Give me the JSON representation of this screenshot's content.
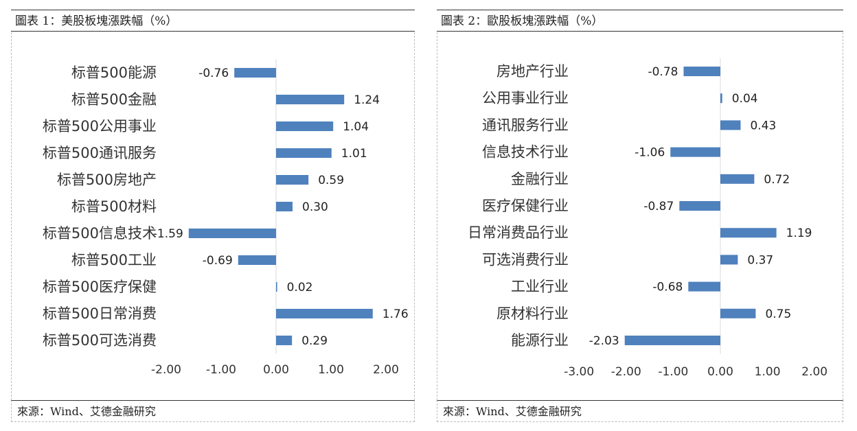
{
  "panels": [
    {
      "title": "圖表 1：美股板塊漲跌幅（%）",
      "source": "來源：Wind、艾德金融研究",
      "chart_data": {
        "type": "bar",
        "orientation": "horizontal",
        "categories": [
          "标普500能源",
          "标普500金融",
          "标普500公用事业",
          "标普500通讯服务",
          "标普500房地产",
          "标普500材料",
          "标普500信息技术",
          "标普500工业",
          "标普500医疗保健",
          "标普500日常消费",
          "标普500可选消费"
        ],
        "values": [
          -0.76,
          1.24,
          1.04,
          1.01,
          0.59,
          0.3,
          -1.59,
          -0.69,
          0.02,
          1.76,
          0.29
        ],
        "value_labels": [
          "-0.76",
          "1.24",
          "1.04",
          "1.01",
          "0.59",
          "0.30",
          "-1.59",
          "-0.69",
          "0.02",
          "1.76",
          "0.29"
        ],
        "xlim": [
          -2.0,
          2.0
        ],
        "ticks": [
          -2.0,
          -1.0,
          0.0,
          1.0,
          2.0
        ],
        "tick_labels": [
          "-2.00",
          "-1.00",
          "0.00",
          "1.00",
          "2.00"
        ],
        "bar_color": "#4f81bd",
        "grid": false
      }
    },
    {
      "title": "圖表 2：歐股板塊漲跌幅（%）",
      "source": "來源：Wind、艾德金融研究",
      "chart_data": {
        "type": "bar",
        "orientation": "horizontal",
        "categories": [
          "房地产行业",
          "公用事业行业",
          "通讯服务行业",
          "信息技术行业",
          "金融行业",
          "医疗保健行业",
          "日常消费品行业",
          "可选消费行业",
          "工业行业",
          "原材料行业",
          "能源行业"
        ],
        "values": [
          -0.78,
          0.04,
          0.43,
          -1.06,
          0.72,
          -0.87,
          1.19,
          0.37,
          -0.68,
          0.75,
          -2.03
        ],
        "value_labels": [
          "-0.78",
          "0.04",
          "0.43",
          "-1.06",
          "0.72",
          "-0.87",
          "1.19",
          "0.37",
          "-0.68",
          "0.75",
          "-2.03"
        ],
        "xlim": [
          -3.0,
          2.0
        ],
        "ticks": [
          -3.0,
          -2.0,
          -1.0,
          0.0,
          1.0,
          2.0
        ],
        "tick_labels": [
          "-3.00",
          "-2.00",
          "-1.00",
          "0.00",
          "1.00",
          "2.00"
        ],
        "bar_color": "#4f81bd",
        "grid": false
      }
    }
  ]
}
